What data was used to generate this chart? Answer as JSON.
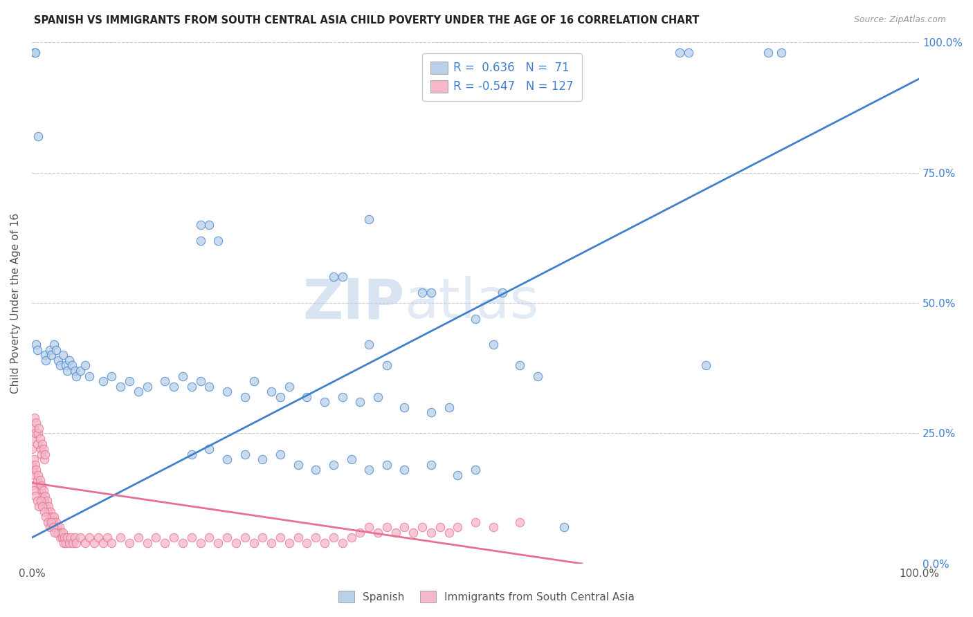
{
  "title": "SPANISH VS IMMIGRANTS FROM SOUTH CENTRAL ASIA CHILD POVERTY UNDER THE AGE OF 16 CORRELATION CHART",
  "source": "Source: ZipAtlas.com",
  "ylabel": "Child Poverty Under the Age of 16",
  "legend_label1": "Spanish",
  "legend_label2": "Immigrants from South Central Asia",
  "r1": 0.636,
  "n1": 71,
  "r2": -0.547,
  "n2": 127,
  "color_blue": "#b8d0e8",
  "color_pink": "#f4b8c8",
  "line_blue": "#4080cc",
  "line_pink": "#e87090",
  "watermark_zip": "ZIP",
  "watermark_atlas": "atlas",
  "blue_dots": [
    [
      0.003,
      0.98
    ],
    [
      0.004,
      0.98
    ],
    [
      0.19,
      0.65
    ],
    [
      0.2,
      0.65
    ],
    [
      0.73,
      0.98
    ],
    [
      0.74,
      0.98
    ],
    [
      0.83,
      0.98
    ],
    [
      0.845,
      0.98
    ],
    [
      0.007,
      0.82
    ],
    [
      0.38,
      0.66
    ],
    [
      0.19,
      0.62
    ],
    [
      0.21,
      0.62
    ],
    [
      0.34,
      0.55
    ],
    [
      0.35,
      0.55
    ],
    [
      0.44,
      0.52
    ],
    [
      0.45,
      0.52
    ],
    [
      0.005,
      0.42
    ],
    [
      0.006,
      0.41
    ],
    [
      0.015,
      0.4
    ],
    [
      0.016,
      0.39
    ],
    [
      0.02,
      0.41
    ],
    [
      0.022,
      0.4
    ],
    [
      0.025,
      0.42
    ],
    [
      0.027,
      0.41
    ],
    [
      0.03,
      0.39
    ],
    [
      0.032,
      0.38
    ],
    [
      0.035,
      0.4
    ],
    [
      0.038,
      0.38
    ],
    [
      0.04,
      0.37
    ],
    [
      0.042,
      0.39
    ],
    [
      0.045,
      0.38
    ],
    [
      0.048,
      0.37
    ],
    [
      0.05,
      0.36
    ],
    [
      0.055,
      0.37
    ],
    [
      0.06,
      0.38
    ],
    [
      0.065,
      0.36
    ],
    [
      0.08,
      0.35
    ],
    [
      0.09,
      0.36
    ],
    [
      0.1,
      0.34
    ],
    [
      0.11,
      0.35
    ],
    [
      0.12,
      0.33
    ],
    [
      0.13,
      0.34
    ],
    [
      0.15,
      0.35
    ],
    [
      0.16,
      0.34
    ],
    [
      0.17,
      0.36
    ],
    [
      0.18,
      0.34
    ],
    [
      0.19,
      0.35
    ],
    [
      0.2,
      0.34
    ],
    [
      0.22,
      0.33
    ],
    [
      0.24,
      0.32
    ],
    [
      0.25,
      0.35
    ],
    [
      0.27,
      0.33
    ],
    [
      0.28,
      0.32
    ],
    [
      0.29,
      0.34
    ],
    [
      0.31,
      0.32
    ],
    [
      0.33,
      0.31
    ],
    [
      0.35,
      0.32
    ],
    [
      0.37,
      0.31
    ],
    [
      0.39,
      0.32
    ],
    [
      0.42,
      0.3
    ],
    [
      0.45,
      0.29
    ],
    [
      0.47,
      0.3
    ],
    [
      0.5,
      0.47
    ],
    [
      0.52,
      0.42
    ],
    [
      0.53,
      0.52
    ],
    [
      0.38,
      0.42
    ],
    [
      0.4,
      0.38
    ],
    [
      0.55,
      0.38
    ],
    [
      0.57,
      0.36
    ],
    [
      0.18,
      0.21
    ],
    [
      0.2,
      0.22
    ],
    [
      0.22,
      0.2
    ],
    [
      0.24,
      0.21
    ],
    [
      0.26,
      0.2
    ],
    [
      0.28,
      0.21
    ],
    [
      0.3,
      0.19
    ],
    [
      0.32,
      0.18
    ],
    [
      0.34,
      0.19
    ],
    [
      0.36,
      0.2
    ],
    [
      0.38,
      0.18
    ],
    [
      0.4,
      0.19
    ],
    [
      0.42,
      0.18
    ],
    [
      0.45,
      0.19
    ],
    [
      0.48,
      0.17
    ],
    [
      0.5,
      0.18
    ],
    [
      0.6,
      0.07
    ],
    [
      0.76,
      0.38
    ]
  ],
  "pink_dots": [
    [
      0.0,
      0.22
    ],
    [
      0.001,
      0.24
    ],
    [
      0.002,
      0.26
    ],
    [
      0.003,
      0.28
    ],
    [
      0.004,
      0.25
    ],
    [
      0.005,
      0.27
    ],
    [
      0.006,
      0.23
    ],
    [
      0.007,
      0.25
    ],
    [
      0.008,
      0.26
    ],
    [
      0.009,
      0.24
    ],
    [
      0.01,
      0.22
    ],
    [
      0.011,
      0.21
    ],
    [
      0.012,
      0.23
    ],
    [
      0.013,
      0.22
    ],
    [
      0.014,
      0.2
    ],
    [
      0.015,
      0.21
    ],
    [
      0.0,
      0.19
    ],
    [
      0.001,
      0.18
    ],
    [
      0.002,
      0.2
    ],
    [
      0.003,
      0.17
    ],
    [
      0.004,
      0.19
    ],
    [
      0.005,
      0.18
    ],
    [
      0.006,
      0.16
    ],
    [
      0.007,
      0.17
    ],
    [
      0.008,
      0.15
    ],
    [
      0.009,
      0.16
    ],
    [
      0.01,
      0.14
    ],
    [
      0.011,
      0.15
    ],
    [
      0.012,
      0.13
    ],
    [
      0.013,
      0.14
    ],
    [
      0.014,
      0.12
    ],
    [
      0.015,
      0.13
    ],
    [
      0.016,
      0.11
    ],
    [
      0.017,
      0.12
    ],
    [
      0.018,
      0.1
    ],
    [
      0.019,
      0.11
    ],
    [
      0.02,
      0.09
    ],
    [
      0.021,
      0.1
    ],
    [
      0.022,
      0.08
    ],
    [
      0.023,
      0.09
    ],
    [
      0.024,
      0.08
    ],
    [
      0.025,
      0.09
    ],
    [
      0.026,
      0.07
    ],
    [
      0.027,
      0.08
    ],
    [
      0.028,
      0.06
    ],
    [
      0.029,
      0.07
    ],
    [
      0.03,
      0.06
    ],
    [
      0.031,
      0.07
    ],
    [
      0.032,
      0.05
    ],
    [
      0.033,
      0.06
    ],
    [
      0.034,
      0.05
    ],
    [
      0.035,
      0.06
    ],
    [
      0.036,
      0.04
    ],
    [
      0.037,
      0.05
    ],
    [
      0.038,
      0.04
    ],
    [
      0.04,
      0.05
    ],
    [
      0.042,
      0.04
    ],
    [
      0.044,
      0.05
    ],
    [
      0.046,
      0.04
    ],
    [
      0.048,
      0.05
    ],
    [
      0.05,
      0.04
    ],
    [
      0.055,
      0.05
    ],
    [
      0.06,
      0.04
    ],
    [
      0.065,
      0.05
    ],
    [
      0.07,
      0.04
    ],
    [
      0.075,
      0.05
    ],
    [
      0.08,
      0.04
    ],
    [
      0.085,
      0.05
    ],
    [
      0.09,
      0.04
    ],
    [
      0.1,
      0.05
    ],
    [
      0.11,
      0.04
    ],
    [
      0.12,
      0.05
    ],
    [
      0.13,
      0.04
    ],
    [
      0.14,
      0.05
    ],
    [
      0.15,
      0.04
    ],
    [
      0.16,
      0.05
    ],
    [
      0.17,
      0.04
    ],
    [
      0.18,
      0.05
    ],
    [
      0.19,
      0.04
    ],
    [
      0.2,
      0.05
    ],
    [
      0.21,
      0.04
    ],
    [
      0.22,
      0.05
    ],
    [
      0.23,
      0.04
    ],
    [
      0.24,
      0.05
    ],
    [
      0.25,
      0.04
    ],
    [
      0.26,
      0.05
    ],
    [
      0.27,
      0.04
    ],
    [
      0.28,
      0.05
    ],
    [
      0.29,
      0.04
    ],
    [
      0.3,
      0.05
    ],
    [
      0.31,
      0.04
    ],
    [
      0.32,
      0.05
    ],
    [
      0.33,
      0.04
    ],
    [
      0.34,
      0.05
    ],
    [
      0.35,
      0.04
    ],
    [
      0.36,
      0.05
    ],
    [
      0.37,
      0.06
    ],
    [
      0.38,
      0.07
    ],
    [
      0.39,
      0.06
    ],
    [
      0.4,
      0.07
    ],
    [
      0.41,
      0.06
    ],
    [
      0.42,
      0.07
    ],
    [
      0.43,
      0.06
    ],
    [
      0.44,
      0.07
    ],
    [
      0.45,
      0.06
    ],
    [
      0.46,
      0.07
    ],
    [
      0.47,
      0.06
    ],
    [
      0.48,
      0.07
    ],
    [
      0.5,
      0.08
    ],
    [
      0.52,
      0.07
    ],
    [
      0.55,
      0.08
    ],
    [
      0.0,
      0.15
    ],
    [
      0.002,
      0.14
    ],
    [
      0.004,
      0.13
    ],
    [
      0.006,
      0.12
    ],
    [
      0.008,
      0.11
    ],
    [
      0.01,
      0.12
    ],
    [
      0.012,
      0.11
    ],
    [
      0.014,
      0.1
    ],
    [
      0.016,
      0.09
    ],
    [
      0.018,
      0.08
    ],
    [
      0.02,
      0.07
    ],
    [
      0.022,
      0.08
    ],
    [
      0.024,
      0.07
    ],
    [
      0.026,
      0.06
    ]
  ],
  "blue_line": [
    [
      0.0,
      0.05
    ],
    [
      1.0,
      0.93
    ]
  ],
  "pink_line": [
    [
      0.0,
      0.155
    ],
    [
      0.62,
      0.0
    ]
  ],
  "xlim": [
    0.0,
    1.0
  ],
  "ylim": [
    0.0,
    1.0
  ],
  "y_ticks": [
    0.0,
    0.25,
    0.5,
    0.75,
    1.0
  ],
  "y_tick_pct": [
    "0.0%",
    "25.0%",
    "50.0%",
    "75.0%",
    "100.0%"
  ],
  "x_ticks": [
    0.0,
    1.0
  ],
  "x_tick_pct": [
    "0.0%",
    "100.0%"
  ]
}
